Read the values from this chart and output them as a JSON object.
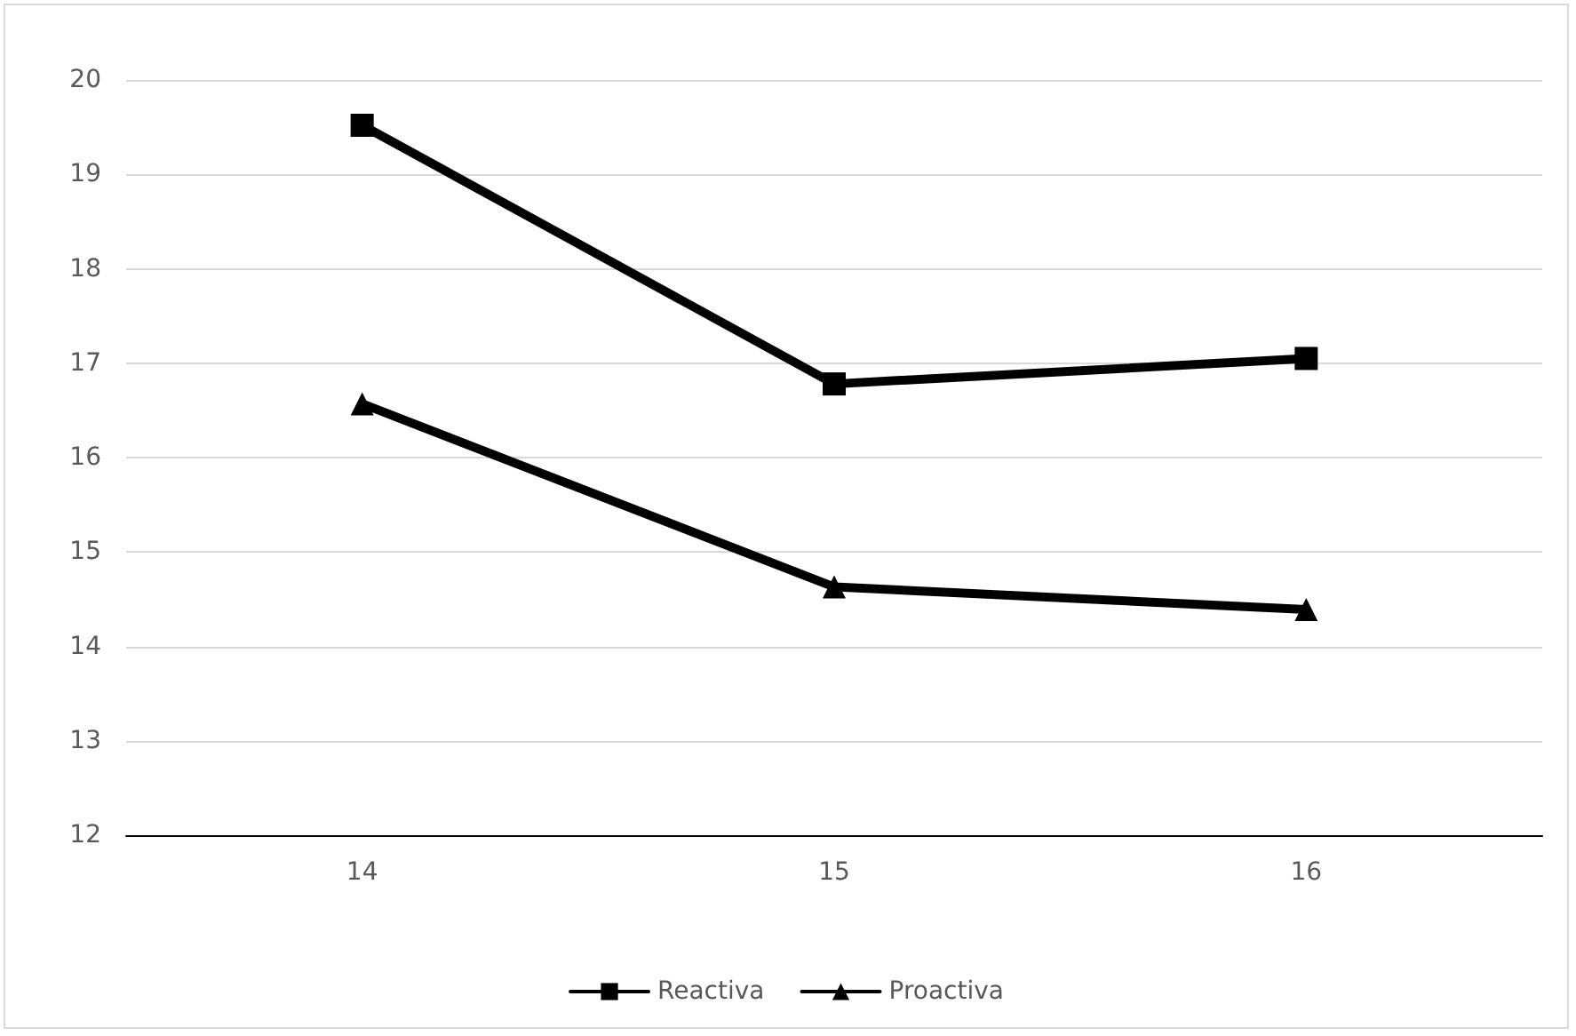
{
  "chart_data": {
    "type": "line",
    "categories": [
      "14",
      "15",
      "16"
    ],
    "series": [
      {
        "name": "Reactiva",
        "color": "#000000",
        "marker": "square",
        "values": [
          19.52,
          16.78,
          17.05
        ]
      },
      {
        "name": "Proactiva",
        "color": "#000000",
        "marker": "triangle",
        "values": [
          16.57,
          14.63,
          14.39
        ]
      }
    ],
    "ylim": [
      12,
      20
    ],
    "yticks": [
      12,
      13,
      14,
      15,
      16,
      17,
      18,
      19,
      20
    ],
    "grid": "y",
    "legend": "bottom",
    "line_style": "solid"
  }
}
